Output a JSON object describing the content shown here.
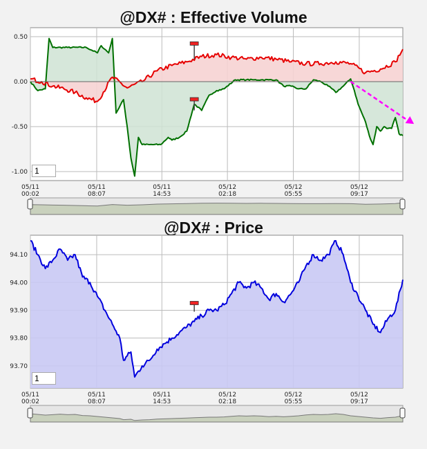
{
  "colors": {
    "positive_line": "#e60000",
    "positive_fill": "#f6d3d3",
    "negative_line": "#007000",
    "negative_fill": "#cfe3d3",
    "price_line": "#0000dd",
    "price_fill": "#c9c9f4",
    "trend_arrow": "#ff00ff",
    "marker": "#ee2222"
  },
  "time_ticks": [
    {
      "date": "05/11",
      "time": "00:02"
    },
    {
      "date": "05/11",
      "time": "08:07"
    },
    {
      "date": "05/11",
      "time": "14:53"
    },
    {
      "date": "05/12",
      "time": "02:18"
    },
    {
      "date": "05/12",
      "time": "05:55"
    },
    {
      "date": "05/12",
      "time": "09:17"
    }
  ],
  "chart_data": [
    {
      "type": "line",
      "title": "@DX# : Effective Volume",
      "ylim": [
        -1.1,
        0.6
      ],
      "yticks": [
        "0.50",
        "0.00",
        "-0.50",
        "-1.00"
      ],
      "ytick_values": [
        0.5,
        0.0,
        -0.5,
        -1.0
      ],
      "period_input": "1",
      "grid": true,
      "series": [
        {
          "color_key": "positive_line",
          "x": [
            0,
            3,
            6,
            9,
            12,
            15,
            18,
            22,
            26,
            30,
            34,
            38,
            42,
            46,
            50,
            54,
            58,
            62,
            66,
            70,
            74,
            78,
            82,
            86,
            90,
            94,
            98,
            100
          ],
          "values": [
            0.03,
            0.0,
            -0.05,
            -0.08,
            -0.12,
            -0.18,
            -0.22,
            0.05,
            -0.07,
            0.0,
            0.12,
            0.18,
            0.22,
            0.28,
            0.3,
            0.27,
            0.25,
            0.27,
            0.25,
            0.22,
            0.2,
            0.2,
            0.22,
            0.2,
            0.1,
            0.14,
            0.22,
            0.36
          ]
        },
        {
          "color_key": "negative_line",
          "x": [
            0,
            2,
            4,
            5,
            6,
            10,
            15,
            18,
            19,
            21,
            22,
            23,
            25,
            26,
            27,
            28,
            29,
            30,
            32,
            35,
            37,
            38,
            40,
            42,
            44,
            46,
            48,
            50,
            52,
            55,
            58,
            60,
            62,
            64,
            66,
            68,
            70,
            72,
            74,
            76,
            78,
            80,
            81,
            82,
            84,
            86,
            87,
            88,
            89,
            90,
            91,
            92,
            93,
            94,
            95,
            96,
            97,
            98,
            99,
            100
          ],
          "values": [
            0.0,
            -0.1,
            -0.08,
            0.48,
            0.38,
            0.38,
            0.38,
            0.32,
            0.4,
            0.32,
            0.48,
            -0.35,
            -0.2,
            -0.5,
            -0.85,
            -1.05,
            -0.62,
            -0.7,
            -0.7,
            -0.7,
            -0.62,
            -0.65,
            -0.62,
            -0.55,
            -0.25,
            -0.32,
            -0.15,
            -0.1,
            -0.08,
            0.02,
            0.02,
            0.02,
            0.02,
            0.02,
            0.02,
            -0.05,
            -0.05,
            -0.08,
            -0.08,
            0.02,
            0.0,
            -0.05,
            -0.08,
            -0.12,
            -0.05,
            0.03,
            -0.1,
            -0.25,
            -0.35,
            -0.45,
            -0.6,
            -0.7,
            -0.5,
            -0.55,
            -0.5,
            -0.52,
            -0.52,
            -0.4,
            -0.58,
            -0.6
          ]
        }
      ],
      "trend_arrow": {
        "x": [
          86,
          103
        ],
        "values": [
          0.0,
          -0.47
        ]
      },
      "markers": [
        {
          "x": 44,
          "values": [
            0.42,
            0.25
          ]
        },
        {
          "x": 44,
          "values": [
            -0.2,
            -0.32
          ]
        }
      ]
    },
    {
      "type": "area",
      "title": "@DX# : Price",
      "ylim": [
        93.62,
        94.17
      ],
      "yticks": [
        "94.10",
        "94.00",
        "93.90",
        "93.80",
        "93.70"
      ],
      "ytick_values": [
        94.1,
        94.0,
        93.9,
        93.8,
        93.7
      ],
      "period_input": "1",
      "grid": true,
      "series": [
        {
          "color_key": "price_line",
          "x": [
            0,
            2,
            4,
            6,
            8,
            10,
            12,
            14,
            16,
            18,
            20,
            22,
            24,
            25,
            27,
            28,
            30,
            32,
            34,
            36,
            38,
            40,
            42,
            44,
            46,
            48,
            50,
            52,
            54,
            56,
            58,
            60,
            62,
            64,
            66,
            68,
            70,
            72,
            74,
            76,
            78,
            80,
            82,
            84,
            85,
            86,
            88,
            90,
            92,
            94,
            96,
            98,
            100
          ],
          "values": [
            94.15,
            94.1,
            94.05,
            94.08,
            94.12,
            94.08,
            94.1,
            94.02,
            94.0,
            93.95,
            93.9,
            93.85,
            93.8,
            93.72,
            93.75,
            93.66,
            93.7,
            93.72,
            93.76,
            93.78,
            93.8,
            93.82,
            93.84,
            93.86,
            93.88,
            93.9,
            93.9,
            93.92,
            93.96,
            94.0,
            93.98,
            94.0,
            93.98,
            93.94,
            93.96,
            93.93,
            93.96,
            94.0,
            94.06,
            94.1,
            94.08,
            94.1,
            94.15,
            94.1,
            94.05,
            94.0,
            93.95,
            93.9,
            93.85,
            93.82,
            93.87,
            93.9,
            94.01
          ]
        }
      ]
    }
  ]
}
